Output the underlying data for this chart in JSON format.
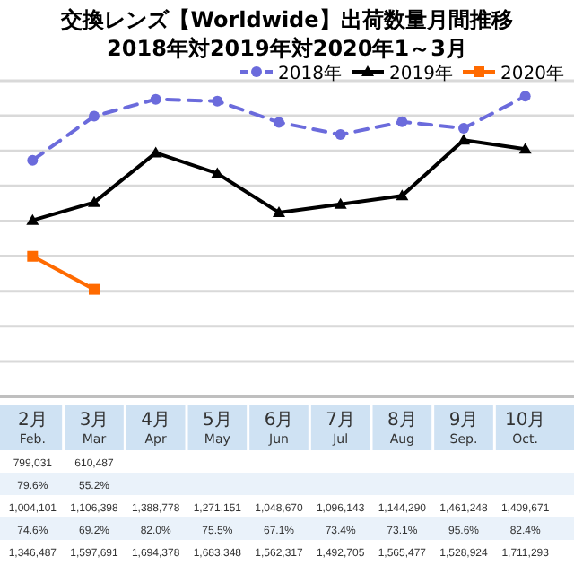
{
  "chart_data": {
    "type": "line",
    "title": "交換レンズ【Worldwide】出荷数量月間推移",
    "subtitle": "2018年対2019年対2020年1～3月",
    "categories": [
      "2月\nFeb.",
      "3月\nMar",
      "4月\nApr",
      "5月\nMay",
      "6月\nJun",
      "7月\nJul",
      "8月\nAug",
      "9月\nSep.",
      "10月\nOct."
    ],
    "series": [
      {
        "name": "2020年",
        "color": "#ff6a00",
        "marker": "square",
        "line_style": "solid",
        "values": [
          799031,
          610487,
          null,
          null,
          null,
          null,
          null,
          null,
          null
        ],
        "value_labels": [
          "799,031",
          "610,487",
          null,
          null,
          null,
          null,
          null,
          null,
          null
        ]
      },
      {
        "name": "2019年",
        "color": "#000000",
        "marker": "triangle",
        "line_style": "solid",
        "values": [
          1004101,
          1106398,
          1388778,
          1271151,
          1048670,
          1096143,
          1144290,
          1461248,
          1409671
        ],
        "value_labels": [
          "1,004,101",
          "1,106,398",
          "1,388,778",
          "1,271,151",
          "1,048,670",
          "1,096,143",
          "1,144,290",
          "1,461,248",
          "1,409,671"
        ]
      },
      {
        "name": "2018年",
        "color": "#6b6bdc",
        "marker": "circle",
        "line_style": "dashed",
        "values": [
          1346487,
          1597691,
          1694378,
          1683348,
          1562317,
          1492705,
          1565477,
          1528924,
          1711293
        ],
        "value_labels": [
          "1,346,487",
          "1,597,691",
          "1,694,378",
          "1,683,348",
          "1,562,317",
          "1,492,705",
          "1,565,477",
          "1,528,924",
          "1,711,293"
        ]
      }
    ],
    "annotations": [
      "79.6%",
      "55.2%",
      "74.6%",
      "69.2%",
      "82.0%",
      "75.5%",
      "67.1%",
      "73.4%",
      "73.1%",
      "95.6%",
      "82.4%"
    ],
    "ylim": [
      0,
      1800000
    ],
    "yticks": [
      {
        "value": 0,
        "label": null
      },
      {
        "value": 200000,
        "label": null
      },
      {
        "value": 400000,
        "label": null
      },
      {
        "value": 600000,
        "label": null
      },
      {
        "value": 800000,
        "label": null
      },
      {
        "value": 1000000,
        "label": null
      },
      {
        "value": 1200000,
        "label": null
      },
      {
        "value": 1400000,
        "label": null
      },
      {
        "value": 1600000,
        "label": null
      },
      {
        "value": 1800000,
        "label": null
      }
    ],
    "grid": "y",
    "legend": "top right"
  }
}
